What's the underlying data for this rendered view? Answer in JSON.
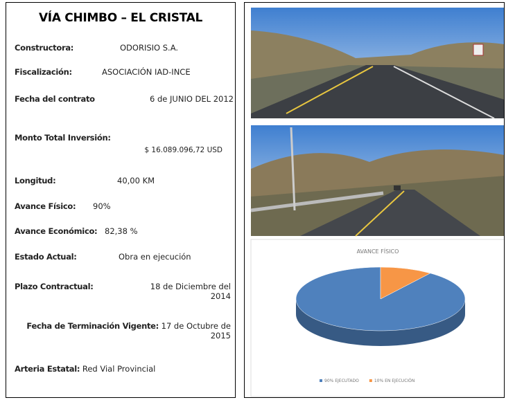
{
  "title": "VÍA CHIMBO – EL CRISTAL",
  "fields": [
    {
      "label": "Constructora:",
      "value": "ODORISIO S.A."
    },
    {
      "label": "Fiscalización:",
      "value": "ASOCIACIÓN IAD-INCE"
    },
    {
      "label": "Fecha del contrato",
      "value": "6 de JUNIO DEL 2012"
    },
    {
      "label": "Monto Total Inversión:",
      "value": "$ 16.089.096,72 USD"
    },
    {
      "label": "Longitud:",
      "value": "40,00 KM"
    },
    {
      "label": "Avance Físico:",
      "value": "90%"
    },
    {
      "label": "Avance Económico:",
      "value": "82,38 %"
    },
    {
      "label": "Estado Actual:",
      "value": "Obra en ejecución"
    },
    {
      "label": "Plazo Contractual:",
      "value": "18 de Diciembre del 2014"
    },
    {
      "label": "Fecha de Terminación Vigente:",
      "value": "17 de Octubre de 2015"
    },
    {
      "label": "Arteria Estatal:",
      "value": "Red Vial Provincial"
    }
  ],
  "chart_data": {
    "type": "pie",
    "title": "AVANCE FÍSICO",
    "categories": [
      "90% EJECUTADO",
      "10% EN EJECUCIÓN"
    ],
    "values": [
      90,
      10
    ],
    "colors": [
      "#4f81bd",
      "#f79646"
    ]
  }
}
